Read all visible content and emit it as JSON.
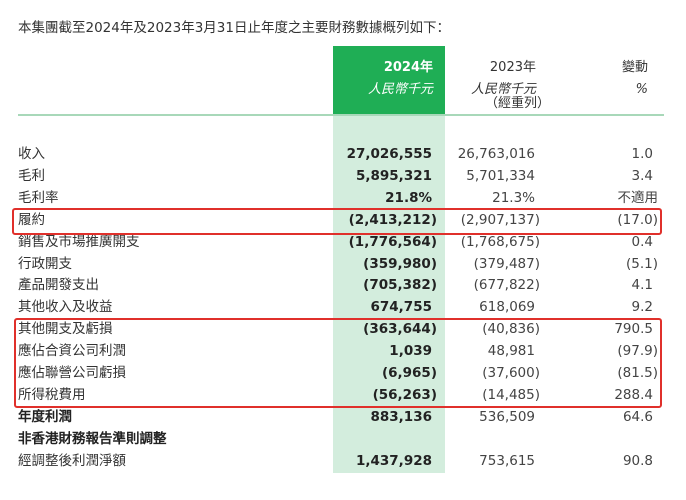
{
  "intro": "本集團截至2024年及2023年3月31日止年度之主要財務數據概列如下：",
  "header": {
    "col2024_year": "2024年",
    "col2024_unit": "人民幣千元",
    "col2023_year": "2023年",
    "col2023_unit": "人民幣千元",
    "col2023_note": "（經重列）",
    "change_title": "變動",
    "change_unit": "%"
  },
  "colors": {
    "header_green": "#1fae55",
    "column_tint": "#d3eddd",
    "highlight_box": "#e0302b"
  },
  "rows": [
    {
      "label": "收入",
      "v2024": "27,026,555",
      "v2023": "26,763,016",
      "change": "1.0"
    },
    {
      "label": "毛利",
      "v2024": "5,895,321",
      "v2023": "5,701,334",
      "change": "3.4"
    },
    {
      "label": "毛利率",
      "v2024": "21.8%",
      "v2023": "21.3%",
      "change": "不適用"
    },
    {
      "label": "履約",
      "v2024": "(2,413,212)",
      "v2023": "(2,907,137)",
      "change": "(17.0)"
    },
    {
      "label": "銷售及市場推廣開支",
      "v2024": "(1,776,564)",
      "v2023": "(1,768,675)",
      "change": "0.4"
    },
    {
      "label": "行政開支",
      "v2024": "(359,980)",
      "v2023": "(379,487)",
      "change": "(5.1)"
    },
    {
      "label": "產品開發支出",
      "v2024": "(705,382)",
      "v2023": "(677,822)",
      "change": "4.1"
    },
    {
      "label": "其他收入及收益",
      "v2024": "674,755",
      "v2023": "618,069",
      "change": "9.2"
    },
    {
      "label": "其他開支及虧損",
      "v2024": "(363,644)",
      "v2023": "(40,836)",
      "change": "790.5"
    },
    {
      "label": "應佔合資公司利潤",
      "v2024": "1,039",
      "v2023": "48,981",
      "change": "(97.9)"
    },
    {
      "label": "應佔聯營公司虧損",
      "v2024": "(6,965)",
      "v2023": "(37,600)",
      "change": "(81.5)"
    },
    {
      "label": "所得稅費用",
      "v2024": "(56,263)",
      "v2023": "(14,485)",
      "change": "288.4"
    },
    {
      "label": "年度利潤",
      "v2024": "883,136",
      "v2023": "536,509",
      "change": "64.6"
    },
    {
      "label": "非香港財務報告準則調整",
      "v2024": "",
      "v2023": "",
      "change": ""
    },
    {
      "label": "經調整後利潤淨額",
      "v2024": "1,437,928",
      "v2023": "753,615",
      "change": "90.8"
    }
  ]
}
